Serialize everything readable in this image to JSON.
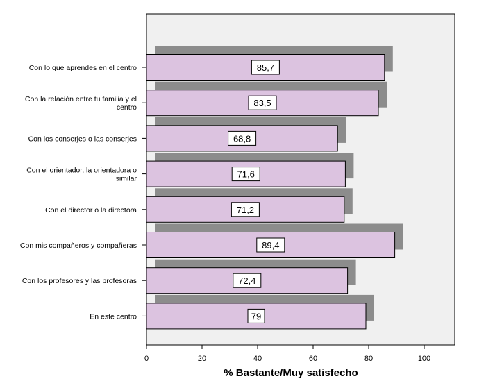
{
  "chart_data": {
    "type": "bar",
    "orientation": "horizontal",
    "categories": [
      [
        "Con lo que aprendes en el centro"
      ],
      [
        "Con la relación entre tu familia y el",
        "centro"
      ],
      [
        "Con los conserjes o las conserjes"
      ],
      [
        "Con el orientador, la orientadora o",
        "similar"
      ],
      [
        "Con el director o la directora"
      ],
      [
        "Con mis compañeros y compañeras"
      ],
      [
        "Con los profesores y las profesoras"
      ],
      [
        "En este centro"
      ]
    ],
    "values": [
      85.7,
      83.5,
      68.8,
      71.6,
      71.2,
      89.4,
      72.4,
      79
    ],
    "data_labels": [
      "85,7",
      "83,5",
      "68,8",
      "71,6",
      "71,2",
      "89,4",
      "72,4",
      "79"
    ],
    "xlabel": "% Bastante/Muy satisfecho",
    "xlim": [
      0,
      110
    ],
    "xticks": [
      0,
      20,
      40,
      60,
      80,
      100
    ],
    "xtick_labels": [
      "0",
      "20",
      "40",
      "60",
      "80",
      "100"
    ],
    "grid": false,
    "bar_color": "#dcc3e0",
    "shadow_color": "#8c8c8c",
    "plot_background": "#f0f0f0"
  }
}
